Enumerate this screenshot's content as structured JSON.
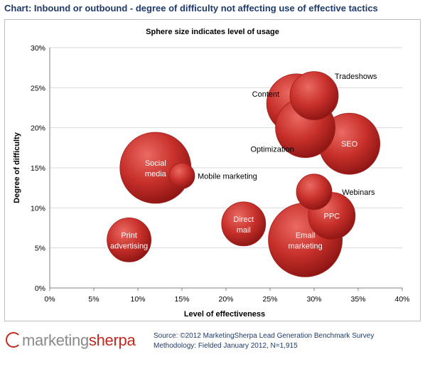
{
  "page_title": "Chart: Inbound or outbound - degree of difficulty not affecting use of effective tactics",
  "footer": {
    "logo_text_1": "marketing",
    "logo_text_2": "sherpa",
    "source": "Source: ©2012 MarketingSherpa Lead Generation Benchmark Survey",
    "methodology": "Methodology: Fielded January 2012, N=1,915"
  },
  "colors": {
    "bubble": "#c8302b",
    "bubble_highlight": "#ea6a62",
    "bubble_shadow": "#8e1614",
    "gridline": "#d9d9d9",
    "title": "#1f3a6d"
  },
  "chart_data": {
    "type": "bubble",
    "title": "Sphere size indicates level of usage",
    "xlabel": "Level of effectiveness",
    "ylabel": "Degree of difficulty",
    "xlim": [
      0,
      40
    ],
    "ylim": [
      0,
      30
    ],
    "x_ticks": [
      "0%",
      "5%",
      "10%",
      "15%",
      "20%",
      "25%",
      "30%",
      "35%",
      "40%"
    ],
    "y_ticks": [
      "0%",
      "5%",
      "10%",
      "15%",
      "20%",
      "25%",
      "30%"
    ],
    "grid": "horizontal",
    "points": [
      {
        "label": "Print advertising",
        "label_lines": [
          "Print",
          "advertising"
        ],
        "x": 9,
        "y": 6,
        "size": 31,
        "label_color": "white",
        "label_pos": "inside"
      },
      {
        "label": "Social media",
        "label_lines": [
          "Social",
          "media"
        ],
        "x": 12,
        "y": 15,
        "size": 50,
        "label_color": "white",
        "label_pos": "inside"
      },
      {
        "label": "Mobile marketing",
        "label_lines": [
          "Mobile marketing"
        ],
        "x": 15,
        "y": 14,
        "size": 18,
        "label_color": "black",
        "label_pos": "right"
      },
      {
        "label": "Direct mail",
        "label_lines": [
          "Direct",
          "mail"
        ],
        "x": 22,
        "y": 8,
        "size": 31,
        "label_color": "white",
        "label_pos": "inside"
      },
      {
        "label": "Content",
        "label_lines": [
          "Content"
        ],
        "x": 28,
        "y": 23,
        "size": 42,
        "label_color": "black",
        "label_pos": "left"
      },
      {
        "label": "Optimization",
        "label_lines": [
          "Optimization"
        ],
        "x": 29,
        "y": 20,
        "size": 42,
        "label_color": "black",
        "label_pos": "left"
      },
      {
        "label": "Tradeshows",
        "label_lines": [
          "Tradeshows"
        ],
        "x": 30,
        "y": 24,
        "size": 34,
        "label_color": "black",
        "label_pos": "upper-right"
      },
      {
        "label": "Email marketing",
        "label_lines": [
          "Email",
          "marketing"
        ],
        "x": 29,
        "y": 6,
        "size": 52,
        "label_color": "white",
        "label_pos": "inside"
      },
      {
        "label": "Webinars",
        "label_lines": [
          "Webinars"
        ],
        "x": 30,
        "y": 12,
        "size": 25,
        "label_color": "black",
        "label_pos": "lower-right"
      },
      {
        "label": "PPC",
        "label_lines": [
          "PPC"
        ],
        "x": 32,
        "y": 9,
        "size": 33,
        "label_color": "white",
        "label_pos": "inside"
      },
      {
        "label": "SEO",
        "label_lines": [
          "SEO"
        ],
        "x": 34,
        "y": 18,
        "size": 43,
        "label_color": "white",
        "label_pos": "inside"
      }
    ]
  }
}
